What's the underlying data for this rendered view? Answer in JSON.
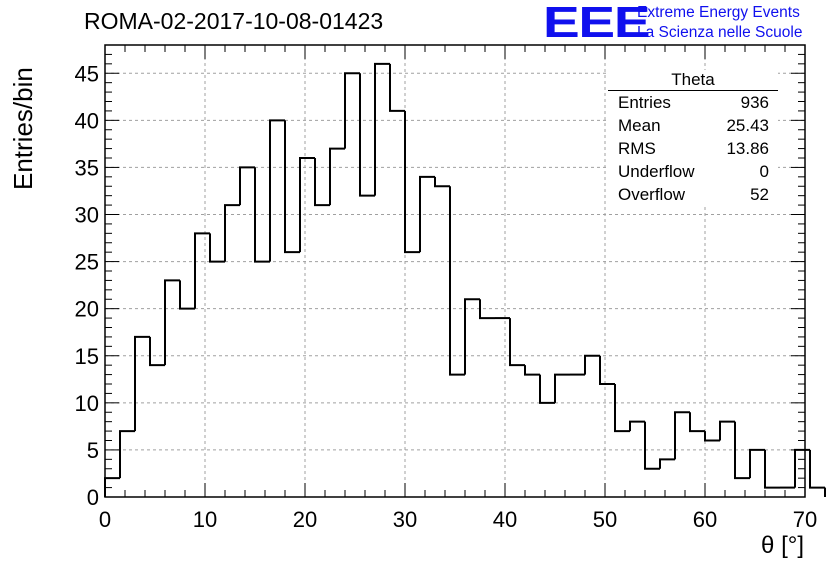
{
  "run_title": "ROMA-02-2017-10-08-01423",
  "logo": {
    "mark": "EEE",
    "line1": "Extreme Energy Events",
    "line2": "La Scienza nelle Scuole",
    "color": "#1010ee"
  },
  "stats": {
    "title": "Theta",
    "rows": [
      {
        "label": "Entries",
        "value": "936"
      },
      {
        "label": "Mean",
        "value": "25.43"
      },
      {
        "label": "RMS",
        "value": "13.86"
      },
      {
        "label": "Underflow",
        "value": "0"
      },
      {
        "label": "Overflow",
        "value": "52"
      }
    ]
  },
  "chart_data": {
    "type": "bar",
    "style": "step-histogram",
    "xlabel": "θ [°]",
    "ylabel": "Entries/bin",
    "xlim": [
      0,
      70
    ],
    "ylim": [
      0,
      48
    ],
    "x_ticks": [
      "0",
      "10",
      "20",
      "30",
      "40",
      "50",
      "60",
      "70"
    ],
    "y_ticks": [
      "0",
      "5",
      "10",
      "15",
      "20",
      "25",
      "30",
      "35",
      "40",
      "45"
    ],
    "grid": true,
    "bin_width": 1.5,
    "bin_start": 0,
    "values": [
      2,
      7,
      17,
      14,
      23,
      20,
      28,
      25,
      31,
      35,
      25,
      40,
      26,
      36,
      31,
      37,
      45,
      32,
      46,
      41,
      26,
      34,
      33,
      13,
      21,
      19,
      19,
      14,
      13,
      10,
      13,
      13,
      15,
      12,
      7,
      8,
      3,
      4,
      9,
      7,
      6,
      8,
      2,
      5,
      1,
      1,
      5,
      1
    ]
  }
}
